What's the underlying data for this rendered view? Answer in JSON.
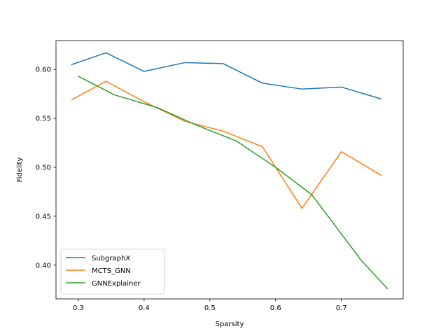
{
  "chart_data": {
    "type": "line",
    "title": "",
    "xlabel": "Sparsity",
    "ylabel": "Fidelity",
    "xlim": [
      0.266,
      0.794
    ],
    "ylim": [
      0.3655,
      0.6295
    ],
    "xticks": [
      0.3,
      0.4,
      0.5,
      0.6,
      0.7
    ],
    "xtick_labels": [
      "0.3",
      "0.4",
      "0.5",
      "0.6",
      "0.7"
    ],
    "yticks": [
      0.4,
      0.45,
      0.5,
      0.55,
      0.6
    ],
    "ytick_labels": [
      "0.40",
      "0.45",
      "0.50",
      "0.55",
      "0.60"
    ],
    "grid": false,
    "legend_position": "lower-left",
    "series": [
      {
        "name": "SubgraphX",
        "color": "#1f77b4",
        "x": [
          0.29,
          0.342,
          0.4,
          0.462,
          0.52,
          0.58,
          0.64,
          0.7,
          0.76
        ],
        "y": [
          0.605,
          0.617,
          0.598,
          0.607,
          0.606,
          0.586,
          0.58,
          0.582,
          0.57
        ]
      },
      {
        "name": "MCTS_GNN",
        "color": "#ff7f0e",
        "x": [
          0.29,
          0.342,
          0.4,
          0.462,
          0.52,
          0.58,
          0.64,
          0.7,
          0.76
        ],
        "y": [
          0.569,
          0.588,
          0.567,
          0.547,
          0.537,
          0.521,
          0.458,
          0.516,
          0.492
        ]
      },
      {
        "name": "GNNExplainer",
        "color": "#2ca02c",
        "x": [
          0.3,
          0.355,
          0.42,
          0.48,
          0.54,
          0.6,
          0.655,
          0.71,
          0.73,
          0.77
        ],
        "y": [
          0.593,
          0.574,
          0.561,
          0.543,
          0.527,
          0.5,
          0.472,
          0.423,
          0.405,
          0.376
        ]
      }
    ]
  }
}
